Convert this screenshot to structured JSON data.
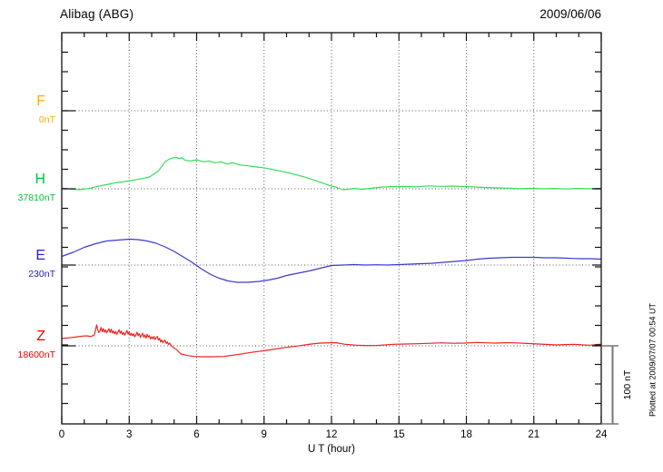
{
  "header": {
    "station": "Alibag (ABG)",
    "date": "2009/06/06"
  },
  "footer": {
    "plotted_at": "Plotted at 2009/07/07 00:54 UT"
  },
  "chart_data": {
    "type": "line",
    "title": "Alibag (ABG)",
    "date": "2009/06/06",
    "xlabel": "U T (hour)",
    "x_range": [
      0,
      24
    ],
    "x_ticks": [
      0,
      3,
      6,
      9,
      12,
      15,
      18,
      21,
      24
    ],
    "x_tick_step": 3,
    "x_minor_tick_step": 1,
    "grid": "dotted vertical lines every 3 h; dotted horizontal line at each component baseline",
    "y_minor_tick_nT": 25,
    "trace_baseline_spacing_nT": 100,
    "scale_bar_nT": 100,
    "scale_bar_label": "100 nT",
    "note": "points are [UT hour, offset in nT from the component baseline value]",
    "series": [
      {
        "label": "F",
        "baseline_label": "0nT",
        "baseline_nT": 0,
        "color": "#ffaa00",
        "label_color": "#ffaa00",
        "points": []
      },
      {
        "label": "H",
        "baseline_label": "37810nT",
        "baseline_nT": 37810,
        "color": "#33dd55",
        "label_color": "#00c43a",
        "points": [
          [
            0,
            0.9
          ],
          [
            0.4,
            -0.3
          ],
          [
            0.8,
            -1.2
          ],
          [
            1.2,
            0.3
          ],
          [
            1.6,
            3.1
          ],
          [
            2.0,
            5.4
          ],
          [
            2.4,
            7.8
          ],
          [
            2.8,
            9.3
          ],
          [
            3.2,
            11.3
          ],
          [
            3.6,
            13.1
          ],
          [
            3.9,
            15.1
          ],
          [
            4.1,
            19.0
          ],
          [
            4.3,
            22.9
          ],
          [
            4.45,
            28.7
          ],
          [
            4.6,
            34.5
          ],
          [
            4.8,
            38.4
          ],
          [
            5.0,
            40.0
          ],
          [
            5.1,
            40.3
          ],
          [
            5.2,
            38.7
          ],
          [
            5.35,
            39.5
          ],
          [
            5.5,
            36.4
          ],
          [
            5.75,
            35.7
          ],
          [
            6.0,
            37.2
          ],
          [
            6.3,
            34.5
          ],
          [
            6.55,
            35.7
          ],
          [
            6.8,
            33.4
          ],
          [
            7.1,
            34.5
          ],
          [
            7.35,
            31.8
          ],
          [
            7.6,
            33.4
          ],
          [
            7.9,
            30.6
          ],
          [
            8.3,
            29.4
          ],
          [
            8.7,
            27.9
          ],
          [
            9.1,
            26.4
          ],
          [
            9.5,
            24.1
          ],
          [
            9.9,
            21.7
          ],
          [
            10.3,
            19.0
          ],
          [
            10.7,
            15.9
          ],
          [
            11.1,
            12.4
          ],
          [
            11.5,
            8.5
          ],
          [
            11.9,
            4.3
          ],
          [
            12.2,
            2.3
          ],
          [
            12.5,
            -1.2
          ],
          [
            12.8,
            -0.5
          ],
          [
            13.0,
            0.6
          ],
          [
            13.4,
            -0.6
          ],
          [
            13.9,
            1.2
          ],
          [
            14.3,
            2.3
          ],
          [
            14.8,
            2.9
          ],
          [
            15.3,
            3.1
          ],
          [
            15.8,
            2.6
          ],
          [
            16.3,
            3.7
          ],
          [
            16.9,
            3.1
          ],
          [
            17.4,
            3.5
          ],
          [
            17.9,
            2.9
          ],
          [
            18.4,
            2.3
          ],
          [
            18.9,
            1.6
          ],
          [
            19.4,
            1.2
          ],
          [
            19.9,
            0.8
          ],
          [
            20.4,
            0.2
          ],
          [
            20.9,
            0.6
          ],
          [
            21.4,
            0.0
          ],
          [
            21.9,
            0.5
          ],
          [
            22.4,
            -0.2
          ],
          [
            22.9,
            0.5
          ],
          [
            23.4,
            0.0
          ],
          [
            23.9,
            0.6
          ],
          [
            24,
            0.3
          ]
        ]
      },
      {
        "label": "E",
        "baseline_label": "230nT",
        "baseline_nT": 230,
        "color": "#3a3acc",
        "label_color": "#2222cc",
        "points": [
          [
            0,
            11.0
          ],
          [
            0.5,
            16.3
          ],
          [
            1.0,
            22.7
          ],
          [
            1.5,
            27.3
          ],
          [
            2.0,
            30.8
          ],
          [
            2.5,
            32.0
          ],
          [
            3.0,
            33.1
          ],
          [
            3.4,
            32.6
          ],
          [
            3.8,
            30.8
          ],
          [
            4.2,
            27.9
          ],
          [
            4.6,
            23.3
          ],
          [
            5.0,
            17.4
          ],
          [
            5.4,
            10.5
          ],
          [
            5.8,
            3.5
          ],
          [
            6.2,
            -4.7
          ],
          [
            6.6,
            -11.6
          ],
          [
            7.0,
            -16.9
          ],
          [
            7.4,
            -20.3
          ],
          [
            7.8,
            -22.1
          ],
          [
            8.3,
            -22.1
          ],
          [
            8.8,
            -20.9
          ],
          [
            9.2,
            -19.2
          ],
          [
            9.6,
            -16.9
          ],
          [
            10.0,
            -13.4
          ],
          [
            10.5,
            -10.5
          ],
          [
            11.0,
            -7.6
          ],
          [
            11.5,
            -4.1
          ],
          [
            12.0,
            -0.6
          ],
          [
            12.5,
            0.0
          ],
          [
            13.0,
            0.6
          ],
          [
            13.5,
            0.0
          ],
          [
            14.0,
            0.3
          ],
          [
            14.5,
            0.0
          ],
          [
            15.0,
            0.6
          ],
          [
            15.5,
            1.2
          ],
          [
            16.0,
            1.7
          ],
          [
            16.5,
            2.3
          ],
          [
            17.0,
            3.5
          ],
          [
            17.5,
            4.7
          ],
          [
            18.0,
            5.8
          ],
          [
            18.5,
            7.6
          ],
          [
            19.0,
            8.7
          ],
          [
            19.5,
            9.3
          ],
          [
            20.0,
            9.9
          ],
          [
            20.5,
            9.9
          ],
          [
            21.0,
            9.9
          ],
          [
            21.5,
            9.3
          ],
          [
            22.0,
            9.3
          ],
          [
            22.5,
            8.7
          ],
          [
            23.0,
            8.1
          ],
          [
            23.5,
            8.1
          ],
          [
            24,
            7.6
          ]
        ]
      },
      {
        "label": "Z",
        "baseline_label": "18600nT",
        "baseline_nT": 18600,
        "color": "#ee2222",
        "label_color": "#ee0000",
        "points": [
          [
            0,
            9.3
          ],
          [
            0.3,
            10.2
          ],
          [
            0.6,
            11.2
          ],
          [
            0.9,
            12.5
          ],
          [
            1.1,
            12.8
          ],
          [
            1.3,
            12.0
          ],
          [
            1.45,
            14.0
          ],
          [
            1.5,
            20.0
          ],
          [
            1.55,
            26.7
          ],
          [
            1.6,
            21.0
          ],
          [
            1.65,
            17.0
          ],
          [
            1.7,
            19.0
          ],
          [
            1.75,
            23.6
          ],
          [
            1.8,
            18.0
          ],
          [
            1.85,
            22.0
          ],
          [
            1.9,
            17.5
          ],
          [
            1.95,
            20.5
          ],
          [
            2.0,
            16.6
          ],
          [
            2.05,
            19.5
          ],
          [
            2.1,
            22.0
          ],
          [
            2.15,
            17.0
          ],
          [
            2.2,
            21.3
          ],
          [
            2.25,
            16.5
          ],
          [
            2.3,
            19.0
          ],
          [
            2.35,
            15.5
          ],
          [
            2.4,
            18.5
          ],
          [
            2.45,
            14.8
          ],
          [
            2.5,
            17.5
          ],
          [
            2.55,
            20.6
          ],
          [
            2.6,
            16.0
          ],
          [
            2.65,
            19.0
          ],
          [
            2.7,
            14.5
          ],
          [
            2.75,
            17.0
          ],
          [
            2.8,
            13.6
          ],
          [
            2.85,
            16.5
          ],
          [
            2.9,
            19.8
          ],
          [
            2.95,
            15.0
          ],
          [
            3.0,
            18.0
          ],
          [
            3.05,
            13.5
          ],
          [
            3.1,
            16.0
          ],
          [
            3.15,
            12.8
          ],
          [
            3.2,
            15.5
          ],
          [
            3.25,
            11.5
          ],
          [
            3.3,
            14.0
          ],
          [
            3.35,
            17.4
          ],
          [
            3.4,
            13.0
          ],
          [
            3.45,
            15.5
          ],
          [
            3.5,
            10.8
          ],
          [
            3.55,
            13.5
          ],
          [
            3.6,
            16.0
          ],
          [
            3.65,
            11.0
          ],
          [
            3.7,
            14.0
          ],
          [
            3.75,
            10.0
          ],
          [
            3.8,
            14.8
          ],
          [
            3.85,
            11.0
          ],
          [
            3.9,
            13.0
          ],
          [
            3.95,
            8.9
          ],
          [
            4.0,
            11.5
          ],
          [
            4.05,
            9.0
          ],
          [
            4.1,
            12.0
          ],
          [
            4.15,
            8.0
          ],
          [
            4.2,
            10.5
          ],
          [
            4.25,
            12.0
          ],
          [
            4.3,
            7.5
          ],
          [
            4.35,
            9.5
          ],
          [
            4.4,
            5.0
          ],
          [
            4.45,
            7.5
          ],
          [
            4.5,
            4.0
          ],
          [
            4.55,
            6.5
          ],
          [
            4.6,
            7.0
          ],
          [
            4.65,
            3.0
          ],
          [
            4.7,
            5.0
          ],
          [
            4.75,
            1.5
          ],
          [
            4.8,
            3.5
          ],
          [
            4.9,
            -0.8
          ],
          [
            5.0,
            -3.0
          ],
          [
            5.1,
            -4.7
          ],
          [
            5.3,
            -10.5
          ],
          [
            5.6,
            -12.4
          ],
          [
            5.9,
            -13.6
          ],
          [
            6.2,
            -14.0
          ],
          [
            6.7,
            -14.0
          ],
          [
            7.2,
            -13.6
          ],
          [
            7.8,
            -11.3
          ],
          [
            8.4,
            -8.5
          ],
          [
            9.1,
            -5.8
          ],
          [
            9.8,
            -2.7
          ],
          [
            10.45,
            -0.3
          ],
          [
            11.1,
            2.3
          ],
          [
            11.5,
            3.5
          ],
          [
            11.9,
            4.0
          ],
          [
            12.2,
            4.1
          ],
          [
            12.6,
            2.0
          ],
          [
            13.1,
            0.8
          ],
          [
            13.5,
            0.5
          ],
          [
            13.95,
            0.3
          ],
          [
            14.75,
            2.0
          ],
          [
            15.3,
            2.3
          ],
          [
            15.8,
            2.7
          ],
          [
            16.4,
            3.2
          ],
          [
            16.9,
            3.8
          ],
          [
            17.4,
            3.3
          ],
          [
            17.9,
            3.5
          ],
          [
            18.5,
            4.3
          ],
          [
            18.9,
            3.8
          ],
          [
            19.3,
            3.5
          ],
          [
            19.7,
            3.9
          ],
          [
            20.15,
            3.8
          ],
          [
            20.7,
            3.0
          ],
          [
            21.2,
            2.3
          ],
          [
            21.6,
            1.8
          ],
          [
            22.0,
            1.2
          ],
          [
            22.4,
            1.6
          ],
          [
            22.8,
            2.0
          ],
          [
            23.2,
            1.2
          ],
          [
            23.5,
            0.8
          ],
          [
            23.9,
            2.0
          ],
          [
            24,
            1.9
          ]
        ]
      }
    ]
  }
}
